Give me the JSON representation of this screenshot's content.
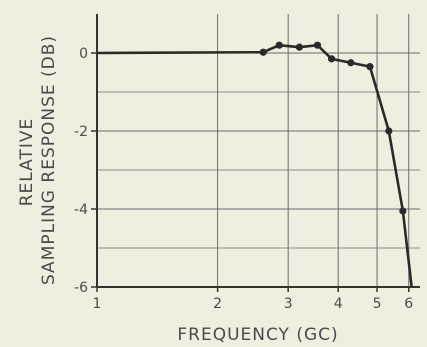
{
  "chart_data": {
    "type": "line",
    "title": "",
    "xlabel": "FREQUENCY (GC)",
    "ylabel_lines": [
      "RELATIVE",
      "SAMPLING RESPONSE (DB)"
    ],
    "x_scale": "log",
    "xlim": [
      1,
      6.4
    ],
    "ylim": [
      -6,
      1
    ],
    "x_ticks": [
      1,
      2,
      3,
      4,
      5,
      6
    ],
    "x_tick_labels": [
      "1",
      "2",
      "3",
      "4",
      "5",
      "6"
    ],
    "y_ticks": [
      0,
      -2,
      -4,
      -6
    ],
    "y_tick_labels": [
      "0",
      "-2",
      "-4",
      "-6"
    ],
    "grid": true,
    "series": [
      {
        "x": [
          1,
          2.6,
          2.85,
          3.2,
          3.55,
          3.85,
          4.3,
          4.8,
          5.35,
          5.8,
          6.1
        ],
        "y": [
          0,
          0.02,
          0.2,
          0.15,
          0.2,
          -0.15,
          -0.25,
          -0.35,
          -2.0,
          -4.05,
          -6.0
        ],
        "markers": [
          false,
          true,
          true,
          true,
          true,
          true,
          true,
          true,
          true,
          true,
          false
        ]
      }
    ],
    "colors": {
      "line": "#2a2a2a",
      "grid": "#6a6a6a",
      "text": "#4a4a4a",
      "background": "#f2eedf"
    }
  }
}
